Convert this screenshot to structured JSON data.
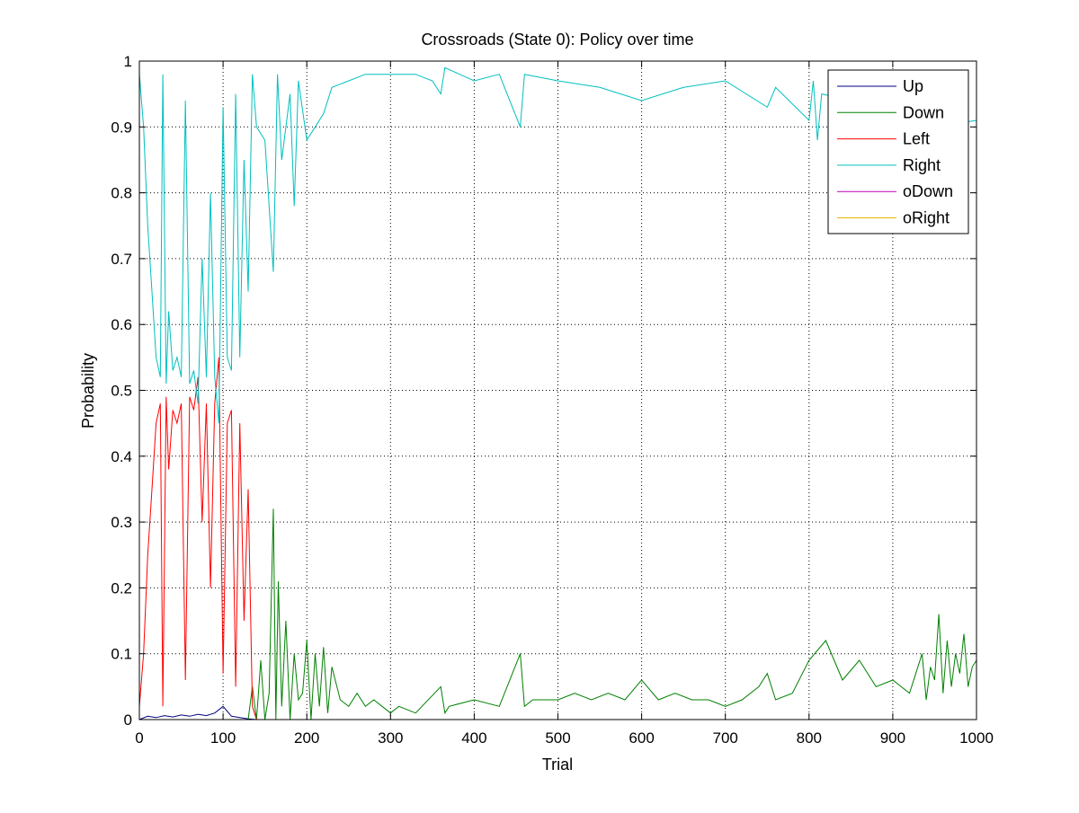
{
  "chart_data": {
    "type": "line",
    "title": "Crossroads (State 0): Policy over time",
    "xlabel": "Trial",
    "ylabel": "Probability",
    "xlim": [
      0,
      1000
    ],
    "ylim": [
      0,
      1
    ],
    "xticks": [
      0,
      100,
      200,
      300,
      400,
      500,
      600,
      700,
      800,
      900,
      1000
    ],
    "xtick_labels": [
      "0",
      "100",
      "200",
      "300",
      "400",
      "500",
      "600",
      "700",
      "800",
      "900",
      "1000"
    ],
    "yticks": [
      0,
      0.1,
      0.2,
      0.3,
      0.4,
      0.5,
      0.6,
      0.7,
      0.8,
      0.9,
      1
    ],
    "ytick_labels": [
      "0",
      "0.1",
      "0.2",
      "0.3",
      "0.4",
      "0.5",
      "0.6",
      "0.7",
      "0.8",
      "0.9",
      "1"
    ],
    "grid": true,
    "legend_position": "top-right",
    "series": [
      {
        "name": "Up",
        "color": "#000080",
        "x": [
          0,
          10,
          20,
          30,
          40,
          50,
          60,
          70,
          80,
          90,
          100,
          110,
          120,
          130,
          140,
          1000
        ],
        "y": [
          0,
          0.005,
          0.003,
          0.006,
          0.004,
          0.007,
          0.005,
          0.008,
          0.006,
          0.01,
          0.02,
          0.005,
          0.003,
          0.001,
          0,
          0
        ]
      },
      {
        "name": "Down",
        "color": "#008000",
        "x": [
          0,
          130,
          135,
          140,
          145,
          150,
          155,
          160,
          163,
          166,
          170,
          175,
          180,
          185,
          190,
          195,
          200,
          205,
          210,
          215,
          220,
          225,
          230,
          240,
          250,
          260,
          270,
          280,
          290,
          300,
          310,
          330,
          360,
          365,
          370,
          400,
          430,
          455,
          460,
          470,
          500,
          520,
          540,
          560,
          580,
          600,
          620,
          640,
          660,
          680,
          700,
          720,
          740,
          750,
          760,
          780,
          800,
          820,
          840,
          860,
          880,
          900,
          920,
          935,
          940,
          945,
          950,
          955,
          960,
          965,
          970,
          975,
          980,
          985,
          990,
          995,
          1000
        ],
        "y": [
          0,
          0,
          0.05,
          0,
          0.09,
          0,
          0.04,
          0.32,
          0,
          0.21,
          0.02,
          0.15,
          0,
          0.1,
          0.03,
          0.04,
          0.12,
          0,
          0.1,
          0.02,
          0.11,
          0.01,
          0.08,
          0.03,
          0.02,
          0.04,
          0.02,
          0.03,
          0.02,
          0.01,
          0.02,
          0.01,
          0.05,
          0.01,
          0.02,
          0.03,
          0.02,
          0.1,
          0.02,
          0.03,
          0.03,
          0.04,
          0.03,
          0.04,
          0.03,
          0.06,
          0.03,
          0.04,
          0.03,
          0.03,
          0.02,
          0.03,
          0.05,
          0.07,
          0.03,
          0.04,
          0.09,
          0.12,
          0.06,
          0.09,
          0.05,
          0.06,
          0.04,
          0.1,
          0.03,
          0.08,
          0.06,
          0.16,
          0.04,
          0.12,
          0.05,
          0.1,
          0.07,
          0.13,
          0.05,
          0.08,
          0.09
        ]
      },
      {
        "name": "Left",
        "color": "#ff0000",
        "x": [
          0,
          5,
          10,
          15,
          20,
          25,
          28,
          32,
          35,
          40,
          45,
          50,
          55,
          60,
          65,
          70,
          75,
          80,
          85,
          90,
          95,
          100,
          105,
          110,
          115,
          120,
          125,
          130,
          135,
          140,
          1000
        ],
        "y": [
          0.02,
          0.1,
          0.25,
          0.35,
          0.45,
          0.48,
          0.02,
          0.49,
          0.38,
          0.47,
          0.45,
          0.48,
          0.06,
          0.49,
          0.47,
          0.52,
          0.3,
          0.48,
          0.2,
          0.48,
          0.55,
          0.07,
          0.45,
          0.47,
          0.05,
          0.45,
          0.15,
          0.35,
          0.02,
          0,
          0
        ]
      },
      {
        "name": "Right",
        "color": "#00bfbf",
        "x": [
          0,
          5,
          10,
          15,
          20,
          25,
          28,
          32,
          35,
          40,
          45,
          50,
          55,
          60,
          65,
          70,
          75,
          80,
          85,
          90,
          95,
          100,
          105,
          110,
          115,
          120,
          125,
          130,
          135,
          140,
          150,
          160,
          165,
          170,
          180,
          185,
          190,
          200,
          210,
          220,
          230,
          250,
          270,
          300,
          330,
          350,
          360,
          365,
          400,
          430,
          455,
          460,
          500,
          550,
          600,
          650,
          700,
          750,
          760,
          800,
          805,
          810,
          815,
          850,
          900,
          950,
          1000
        ],
        "y": [
          0.98,
          0.9,
          0.75,
          0.65,
          0.55,
          0.52,
          0.98,
          0.51,
          0.62,
          0.53,
          0.55,
          0.52,
          0.94,
          0.51,
          0.53,
          0.48,
          0.7,
          0.52,
          0.8,
          0.52,
          0.45,
          0.93,
          0.55,
          0.53,
          0.95,
          0.55,
          0.85,
          0.65,
          0.98,
          0.9,
          0.88,
          0.68,
          0.98,
          0.85,
          0.95,
          0.78,
          0.97,
          0.88,
          0.9,
          0.92,
          0.96,
          0.97,
          0.98,
          0.98,
          0.98,
          0.97,
          0.95,
          0.99,
          0.97,
          0.98,
          0.9,
          0.98,
          0.97,
          0.96,
          0.94,
          0.96,
          0.97,
          0.93,
          0.96,
          0.91,
          0.97,
          0.88,
          0.95,
          0.94,
          0.96,
          0.9,
          0.91
        ]
      },
      {
        "name": "oDown",
        "color": "#bf00bf",
        "x": [
          0,
          1000
        ],
        "y": [
          0,
          0
        ]
      },
      {
        "name": "oRight",
        "color": "#e6b800",
        "x": [
          0,
          1000
        ],
        "y": [
          0,
          0
        ]
      }
    ]
  }
}
